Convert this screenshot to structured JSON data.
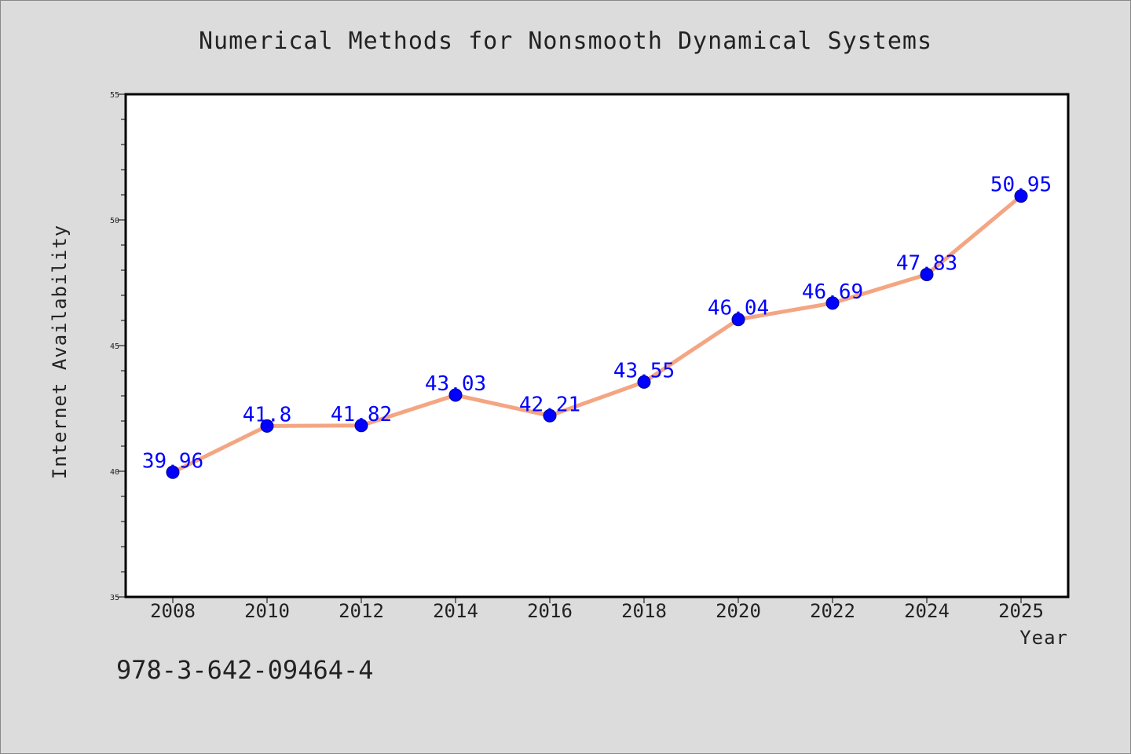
{
  "chart_data": {
    "type": "line",
    "title": "Numerical Methods for Nonsmooth Dynamical Systems",
    "xlabel": "Year",
    "ylabel": "Internet Availability",
    "categories": [
      "2008",
      "2010",
      "2012",
      "2014",
      "2016",
      "2018",
      "2020",
      "2022",
      "2024",
      "2025"
    ],
    "series": [
      {
        "values": [
          39.96,
          41.8,
          41.82,
          43.03,
          42.21,
          43.55,
          46.04,
          46.69,
          47.83,
          50.95
        ],
        "labels": [
          "39.96",
          "41.8",
          "41.82",
          "43.03",
          "42.21",
          "43.55",
          "46.04",
          "46.69",
          "47.83",
          "50.95"
        ]
      }
    ],
    "ylim": [
      35,
      55
    ],
    "yticks": [
      "35",
      "40",
      "45",
      "50",
      "55"
    ],
    "grid": false,
    "legend": "none",
    "line_color": "#f4a582",
    "marker_color": "#0000ff",
    "label_color": "#0000ff"
  },
  "footer": "978-3-642-09464-4"
}
